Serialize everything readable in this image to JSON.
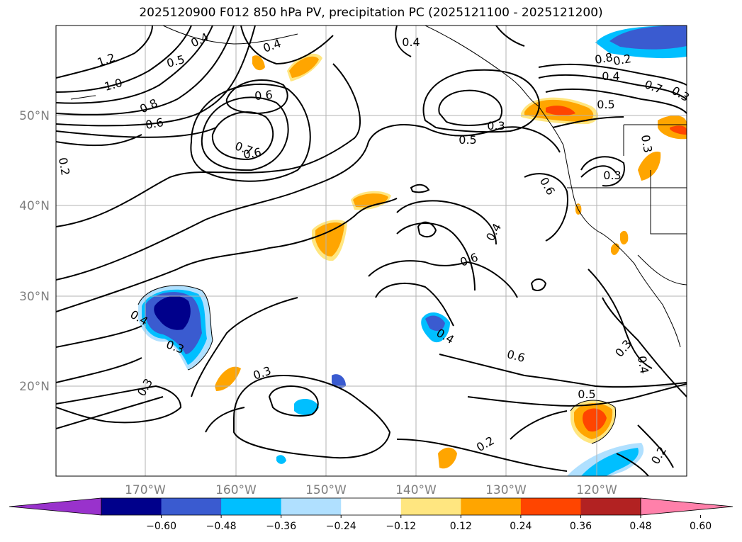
{
  "title": "2025120900 F012 850 hPa PV, precipitation PC (2025121100 - 2025121200)",
  "lat_labels": [
    "50°N",
    "40°N",
    "30°N",
    "20°N"
  ],
  "lon_labels": [
    "170°W",
    "160°W",
    "150°W",
    "140°W",
    "130°W",
    "120°W"
  ],
  "contour_labels": [
    "1.2",
    "1.0",
    "0.8",
    "0.6",
    "0.5",
    "0.4",
    "0.6",
    "0.4",
    "0.7",
    "0.6",
    "0.5",
    "0.4",
    "0.3",
    "0.5",
    "0.6",
    "0.4",
    "0.3",
    "0.8",
    "0.7",
    "0.4",
    "0.3",
    "0.3",
    "0.6",
    "0.4",
    "0.6",
    "0.3",
    "0.4",
    "0.5",
    "0.3",
    "0.4",
    "0.3",
    "0.2",
    "0.2",
    "0.3",
    "0.2",
    "0.2"
  ],
  "colorbar": {
    "ticks": [
      "−0.60",
      "−0.48",
      "−0.36",
      "−0.24",
      "−0.12",
      "0.12",
      "0.24",
      "0.36",
      "0.48",
      "0.60"
    ],
    "colors": [
      "#9932cc",
      "#00008b",
      "#3a5bd0",
      "#00bfff",
      "#b0e0ff",
      "#ffffff",
      "#ffe680",
      "#ffa500",
      "#ff4500",
      "#b22222",
      "#ff80aa"
    ]
  }
}
